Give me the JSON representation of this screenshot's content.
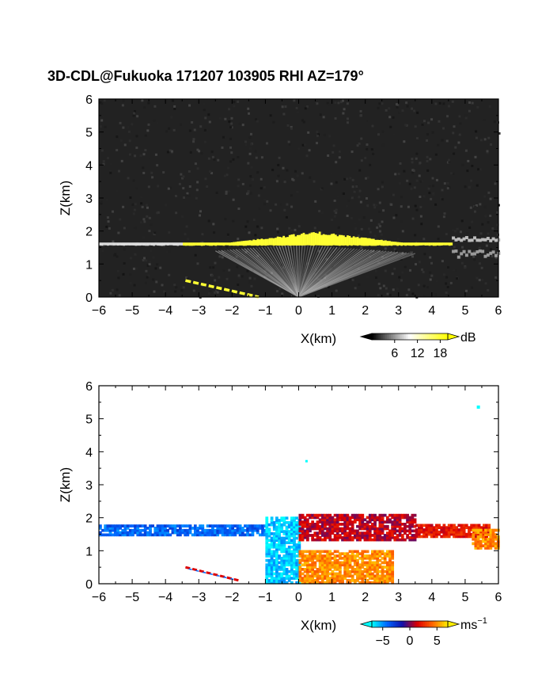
{
  "title": "3D-CDL@Fukuoka 171207 103905 RHI AZ=179°",
  "chart_data": [
    {
      "type": "heatmap",
      "name": "backscatter-rhi",
      "xlabel": "X(km)",
      "ylabel": "Z(km)",
      "xlim": [
        -6,
        6
      ],
      "ylim": [
        0,
        6
      ],
      "xticks": [
        -6,
        -5,
        -4,
        -3,
        -2,
        -1,
        0,
        1,
        2,
        3,
        4,
        5,
        6
      ],
      "yticks": [
        0,
        1,
        2,
        3,
        4,
        5,
        6
      ],
      "colorbar": {
        "unit": "dB",
        "ticks": [
          6,
          12,
          18
        ],
        "range": [
          0,
          20
        ],
        "palette": [
          "#000000",
          "#ffffff",
          "#ffff00"
        ]
      },
      "noise_color": "#222222",
      "features": [
        {
          "kind": "cloud-base-band",
          "x": [
            -6,
            4.6
          ],
          "z_base": 1.55,
          "z_top": 2.0,
          "value_db": 18
        },
        {
          "kind": "fan-echo",
          "x": [
            -2.5,
            3.5
          ],
          "z": [
            0,
            1.6
          ],
          "value_db": 8
        },
        {
          "kind": "low-streak",
          "x": [
            -3.4,
            -1.2
          ],
          "z": [
            0.5,
            0.0
          ],
          "value_db": 18
        }
      ]
    },
    {
      "type": "heatmap",
      "name": "doppler-velocity-rhi",
      "xlabel": "X(km)",
      "ylabel": "Z(km)",
      "xlim": [
        -6,
        6
      ],
      "ylim": [
        0,
        6
      ],
      "xticks": [
        -6,
        -5,
        -4,
        -3,
        -2,
        -1,
        0,
        1,
        2,
        3,
        4,
        5,
        6
      ],
      "yticks": [
        0,
        1,
        2,
        3,
        4,
        5,
        6
      ],
      "colorbar": {
        "unit": "ms",
        "unit_exp": "−1",
        "ticks": [
          -5,
          0,
          5
        ],
        "tick_labels": [
          "−5",
          "0",
          "5"
        ],
        "range": [
          -7,
          7
        ],
        "palette": [
          "#00ffff",
          "#0066ff",
          "#1010aa",
          "#dd0000",
          "#ff6600",
          "#ffee00"
        ]
      },
      "regions": [
        {
          "x": [
            -6,
            -1.0
          ],
          "z": [
            1.45,
            1.75
          ],
          "velocity": -4
        },
        {
          "x": [
            -1.0,
            0.0
          ],
          "z": [
            0.0,
            2.0
          ],
          "velocity": -6
        },
        {
          "x": [
            0.0,
            3.5
          ],
          "z": [
            1.3,
            2.05
          ],
          "velocity": 1
        },
        {
          "x": [
            3.5,
            5.7
          ],
          "z": [
            1.4,
            1.75
          ],
          "velocity": 2
        },
        {
          "x": [
            5.2,
            6.0
          ],
          "z": [
            1.05,
            1.6
          ],
          "velocity": 5
        },
        {
          "x": [
            0.0,
            2.8
          ],
          "z": [
            0.0,
            1.0
          ],
          "velocity": 5
        }
      ]
    }
  ]
}
